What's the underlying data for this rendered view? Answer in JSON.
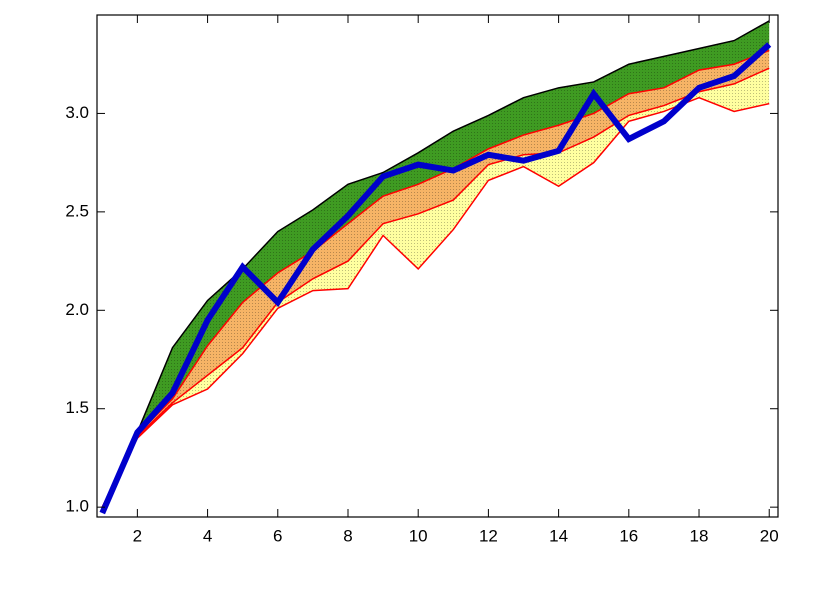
{
  "chart_data": {
    "type": "line",
    "x": [
      1,
      2,
      3,
      4,
      5,
      6,
      7,
      8,
      9,
      10,
      11,
      12,
      13,
      14,
      15,
      16,
      17,
      18,
      19,
      20
    ],
    "series": [
      {
        "color": "#000000",
        "fill": "#3f9b22",
        "values": [
          1.0,
          1.38,
          1.81,
          2.05,
          2.21,
          2.4,
          2.51,
          2.64,
          2.7,
          2.8,
          2.91,
          2.99,
          3.08,
          3.13,
          3.16,
          3.25,
          3.29,
          3.33,
          3.37,
          3.47
        ]
      },
      {
        "color": "#ff0000",
        "fill": "#f6b466",
        "values": [
          1.0,
          1.37,
          1.55,
          1.82,
          2.04,
          2.19,
          2.3,
          2.44,
          2.58,
          2.64,
          2.72,
          2.82,
          2.89,
          2.94,
          3.0,
          3.1,
          3.13,
          3.22,
          3.25,
          3.32
        ]
      },
      {
        "color": "#ff0000",
        "fill": "#ffffa0",
        "values": [
          1.0,
          1.36,
          1.53,
          1.67,
          1.81,
          2.04,
          2.16,
          2.25,
          2.44,
          2.49,
          2.56,
          2.74,
          2.79,
          2.8,
          2.88,
          2.99,
          3.04,
          3.11,
          3.15,
          3.23
        ]
      },
      {
        "color": "#ff0000",
        "values": [
          1.0,
          1.35,
          1.52,
          1.6,
          1.78,
          2.01,
          2.1,
          2.11,
          2.38,
          2.21,
          2.41,
          2.66,
          2.73,
          2.63,
          2.75,
          2.96,
          3.01,
          3.08,
          3.01,
          3.05
        ]
      },
      {
        "color": "#0000cc",
        "values": [
          0.97,
          1.38,
          1.58,
          1.95,
          2.22,
          2.04,
          2.31,
          2.48,
          2.68,
          2.74,
          2.71,
          2.79,
          2.76,
          2.81,
          3.1,
          2.87,
          2.96,
          3.13,
          3.19,
          3.35
        ]
      }
    ],
    "xlim": [
      0.85,
      20.25
    ],
    "ylim": [
      0.95,
      3.5
    ],
    "xticks": [
      2,
      4,
      6,
      8,
      10,
      12,
      14,
      16,
      18,
      20
    ],
    "yticks": [
      {
        "value": 1,
        "label": "1.0"
      },
      1.5,
      {
        "value": 2,
        "label": "2.0"
      },
      2.5,
      {
        "value": 3,
        "label": "3.0"
      }
    ]
  }
}
